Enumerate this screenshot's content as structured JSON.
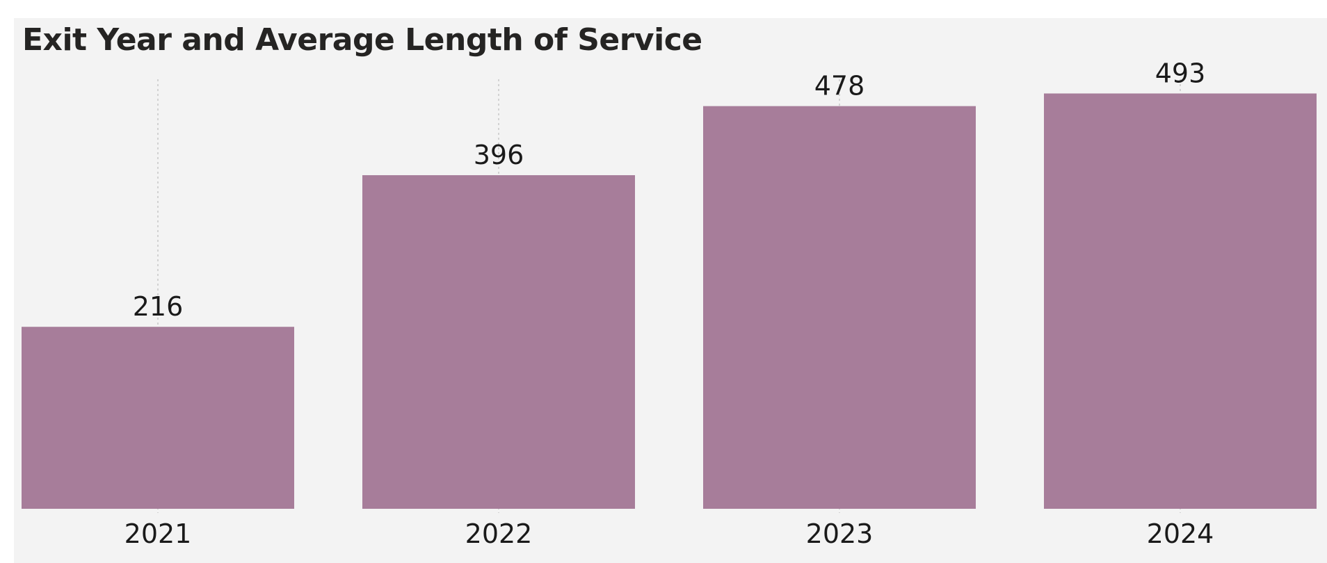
{
  "chart_data": {
    "type": "bar",
    "title": "Exit Year and Average Length of Service",
    "categories": [
      "2021",
      "2022",
      "2023",
      "2024"
    ],
    "values": [
      216,
      396,
      478,
      493
    ],
    "xlabel": "",
    "ylabel": "",
    "ylim": [
      0,
      500
    ],
    "grid": "vertical dotted",
    "legend": "none",
    "colors": {
      "bar": "#a77d9a",
      "grid": "#c8c8c8",
      "panel": "#f3f3f3",
      "text": "#1a1a1a"
    }
  }
}
